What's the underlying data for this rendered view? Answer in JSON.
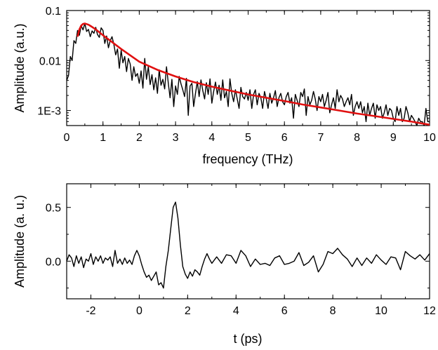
{
  "chart_data": [
    {
      "type": "line",
      "title": "",
      "xlabel": "frequency (THz)",
      "ylabel": "Amplitude (a.u.)",
      "xlim": [
        0,
        10
      ],
      "ylim": [
        0.0005,
        0.1
      ],
      "yscale": "log",
      "grid": false,
      "legend": "none",
      "x_ticks": [
        "0",
        "1",
        "2",
        "3",
        "4",
        "5",
        "6",
        "7",
        "8",
        "9",
        "10"
      ],
      "y_ticks": [
        "1E-3",
        "0.01",
        "0.1"
      ],
      "series": [
        {
          "color": "#000000",
          "x": [
            0,
            0.05,
            0.1,
            0.15,
            0.2,
            0.25,
            0.3,
            0.35,
            0.4,
            0.45,
            0.5,
            0.55,
            0.6,
            0.65,
            0.7,
            0.75,
            0.8,
            0.85,
            0.9,
            0.95,
            1.0,
            1.05,
            1.1,
            1.15,
            1.2,
            1.25,
            1.3,
            1.35,
            1.4,
            1.45,
            1.5,
            1.55,
            1.6,
            1.65,
            1.7,
            1.75,
            1.8,
            1.85,
            1.9,
            1.95,
            2.0,
            2.05,
            2.1,
            2.15,
            2.2,
            2.25,
            2.3,
            2.35,
            2.4,
            2.45,
            2.5,
            2.55,
            2.6,
            2.65,
            2.7,
            2.75,
            2.8,
            2.85,
            2.9,
            2.95,
            3.0,
            3.05,
            3.1,
            3.15,
            3.2,
            3.25,
            3.3,
            3.35,
            3.4,
            3.45,
            3.5,
            3.55,
            3.6,
            3.65,
            3.7,
            3.75,
            3.8,
            3.85,
            3.9,
            3.95,
            4.0,
            4.05,
            4.1,
            4.15,
            4.2,
            4.25,
            4.3,
            4.35,
            4.4,
            4.45,
            4.5,
            4.55,
            4.6,
            4.65,
            4.7,
            4.75,
            4.8,
            4.85,
            4.9,
            4.95,
            5.0,
            5.05,
            5.1,
            5.15,
            5.2,
            5.25,
            5.3,
            5.35,
            5.4,
            5.45,
            5.5,
            5.55,
            5.6,
            5.65,
            5.7,
            5.75,
            5.8,
            5.85,
            5.9,
            5.95,
            6.0,
            6.05,
            6.1,
            6.15,
            6.2,
            6.25,
            6.3,
            6.35,
            6.4,
            6.45,
            6.5,
            6.55,
            6.6,
            6.65,
            6.7,
            6.75,
            6.8,
            6.85,
            6.9,
            6.95,
            7.0,
            7.05,
            7.1,
            7.15,
            7.2,
            7.25,
            7.3,
            7.35,
            7.4,
            7.45,
            7.5,
            7.55,
            7.6,
            7.65,
            7.7,
            7.75,
            7.8,
            7.85,
            7.9,
            7.95,
            8.0,
            8.05,
            8.1,
            8.15,
            8.2,
            8.25,
            8.3,
            8.35,
            8.4,
            8.45,
            8.5,
            8.55,
            8.6,
            8.65,
            8.7,
            8.75,
            8.8,
            8.85,
            8.9,
            8.95,
            9.0,
            9.05,
            9.1,
            9.15,
            9.2,
            9.25,
            9.3,
            9.35,
            9.4,
            9.45,
            9.5,
            9.55,
            9.6,
            9.65,
            9.7,
            9.75,
            9.8,
            9.85,
            9.9,
            9.95,
            10.0
          ],
          "y": [
            0.004,
            0.005,
            0.012,
            0.01,
            0.025,
            0.022,
            0.04,
            0.032,
            0.05,
            0.041,
            0.055,
            0.038,
            0.042,
            0.03,
            0.039,
            0.035,
            0.046,
            0.033,
            0.029,
            0.045,
            0.04,
            0.022,
            0.031,
            0.018,
            0.025,
            0.03,
            0.021,
            0.013,
            0.017,
            0.007,
            0.016,
            0.009,
            0.012,
            0.006,
            0.011,
            0.0085,
            0.004,
            0.0075,
            0.0048,
            0.0055,
            0.0035,
            0.0062,
            0.0028,
            0.011,
            0.0042,
            0.0075,
            0.0033,
            0.0052,
            0.0026,
            0.0045,
            0.0022,
            0.0065,
            0.0032,
            0.0042,
            0.0027,
            0.0075,
            0.0035,
            0.0018,
            0.0042,
            0.0012,
            0.0031,
            0.0021,
            0.0048,
            0.0034,
            0.0026,
            0.0019,
            0.0044,
            0.0008,
            0.0031,
            0.0035,
            0.0012,
            0.0022,
            0.0038,
            0.0019,
            0.0041,
            0.0025,
            0.0017,
            0.0036,
            0.0021,
            0.0043,
            0.0014,
            0.0024,
            0.0037,
            0.0021,
            0.0032,
            0.0016,
            0.0041,
            0.0018,
            0.0024,
            0.0012,
            0.0043,
            0.0022,
            0.0015,
            0.0026,
            0.0017,
            0.0011,
            0.0029,
            0.0019,
            0.0017,
            0.0023,
            0.0016,
            0.0026,
            0.0011,
            0.0021,
            0.0026,
            0.0013,
            0.0022,
            0.0018,
            0.0011,
            0.0024,
            0.0017,
            0.0011,
            0.0022,
            0.0014,
            0.0018,
            0.0025,
            0.0012,
            0.0018,
            0.0022,
            0.0015,
            0.0013,
            0.0019,
            0.0023,
            0.0014,
            0.0018,
            0.0007,
            0.0021,
            0.0016,
            0.0012,
            0.0023,
            0.0019,
            0.0027,
            0.0008,
            0.0019,
            0.0013,
            0.0016,
            0.0024,
            0.0017,
            0.001,
            0.0019,
            0.0015,
            0.0021,
            0.0012,
            0.0016,
            0.0023,
            0.0009,
            0.0013,
            0.0018,
            0.0011,
            0.0026,
            0.0015,
            0.002,
            0.0017,
            0.0012,
            0.0015,
            0.0018,
            0.0013,
            0.0021,
            0.0008,
            0.0012,
            0.0015,
            0.0011,
            0.0015,
            0.0009,
            0.0012,
            0.0006,
            0.0014,
            0.0008,
            0.0011,
            0.0014,
            0.0007,
            0.0013,
            0.001,
            0.0012,
            0.0007,
            0.0009,
            0.0013,
            0.0008,
            0.0011,
            0.001,
            0.0007,
            0.0006,
            0.0012,
            0.0008,
            0.0011,
            0.0006,
            0.0007,
            0.0012,
            0.0009,
            0.0006,
            0.0008,
            0.0007,
            0.0006,
            0.0005,
            0.0007,
            0.0006,
            0.0006,
            0.0005,
            0.0011,
            0.0006,
            0.0006
          ]
        },
        {
          "color": "#e01010",
          "x": [
            0.3,
            0.35,
            0.4,
            0.45,
            0.5,
            0.6,
            0.7,
            0.8,
            1.0,
            1.2,
            1.5,
            2.0,
            2.5,
            3.0,
            3.5,
            4.0,
            4.5,
            5.0,
            5.5,
            6.0,
            6.5,
            7.0,
            7.5,
            8.0,
            8.5,
            9.0,
            9.5,
            10.0
          ],
          "y": [
            0.03,
            0.042,
            0.05,
            0.054,
            0.055,
            0.052,
            0.047,
            0.042,
            0.032,
            0.025,
            0.017,
            0.0095,
            0.0065,
            0.0048,
            0.0037,
            0.003,
            0.0025,
            0.0021,
            0.0018,
            0.00155,
            0.00132,
            0.00115,
            0.001,
            0.00087,
            0.00077,
            0.00068,
            0.0006,
            0.00052
          ]
        }
      ]
    },
    {
      "type": "line",
      "title": "",
      "xlabel": "t (ps)",
      "ylabel": "Amplitude (a. u.)",
      "xlim": [
        -3,
        12
      ],
      "ylim": [
        -0.35,
        0.72
      ],
      "yscale": "linear",
      "grid": false,
      "legend": "none",
      "x_ticks": [
        "-2",
        "0",
        "2",
        "4",
        "6",
        "8",
        "10",
        "12"
      ],
      "y_ticks": [
        "0.0",
        "0.5"
      ],
      "series": [
        {
          "color": "#000000",
          "x": [
            -3.0,
            -2.9,
            -2.8,
            -2.7,
            -2.6,
            -2.5,
            -2.4,
            -2.3,
            -2.2,
            -2.1,
            -2.0,
            -1.9,
            -1.8,
            -1.7,
            -1.6,
            -1.5,
            -1.4,
            -1.3,
            -1.2,
            -1.1,
            -1.0,
            -0.9,
            -0.8,
            -0.7,
            -0.6,
            -0.5,
            -0.4,
            -0.3,
            -0.2,
            -0.1,
            0.0,
            0.1,
            0.2,
            0.3,
            0.4,
            0.5,
            0.6,
            0.7,
            0.8,
            0.9,
            1.0,
            1.1,
            1.2,
            1.3,
            1.4,
            1.5,
            1.6,
            1.7,
            1.8,
            1.9,
            2.0,
            2.1,
            2.2,
            2.3,
            2.4,
            2.5,
            2.6,
            2.7,
            2.8,
            2.9,
            3.0,
            3.2,
            3.4,
            3.6,
            3.8,
            4.0,
            4.2,
            4.4,
            4.6,
            4.8,
            5.0,
            5.2,
            5.4,
            5.6,
            5.8,
            6.0,
            6.2,
            6.4,
            6.6,
            6.8,
            7.0,
            7.2,
            7.4,
            7.6,
            7.8,
            8.0,
            8.2,
            8.4,
            8.6,
            8.8,
            9.0,
            9.2,
            9.4,
            9.6,
            9.8,
            10.0,
            10.2,
            10.4,
            10.6,
            10.8,
            11.0,
            11.2,
            11.4,
            11.6,
            11.8,
            12.0
          ],
          "y": [
            0.0,
            0.06,
            0.03,
            -0.05,
            0.05,
            -0.02,
            0.04,
            -0.06,
            0.02,
            0.0,
            0.07,
            -0.03,
            0.04,
            0.0,
            0.05,
            -0.02,
            0.03,
            0.01,
            0.04,
            -0.05,
            0.1,
            -0.02,
            0.02,
            -0.03,
            0.03,
            -0.02,
            0.01,
            -0.03,
            0.05,
            0.1,
            0.05,
            -0.03,
            -0.1,
            -0.15,
            -0.13,
            -0.18,
            -0.14,
            -0.1,
            -0.22,
            -0.2,
            -0.25,
            -0.05,
            0.1,
            0.3,
            0.5,
            0.55,
            0.4,
            0.15,
            -0.05,
            -0.12,
            -0.16,
            -0.1,
            -0.14,
            -0.08,
            -0.1,
            -0.13,
            -0.05,
            0.02,
            0.07,
            0.02,
            -0.02,
            0.04,
            -0.02,
            0.06,
            0.05,
            -0.02,
            0.1,
            0.05,
            -0.05,
            0.02,
            -0.03,
            -0.02,
            -0.04,
            0.03,
            0.05,
            -0.03,
            -0.02,
            0.0,
            0.08,
            -0.04,
            -0.01,
            0.05,
            -0.1,
            -0.03,
            0.09,
            0.07,
            0.12,
            0.06,
            0.02,
            -0.05,
            0.03,
            -0.04,
            0.03,
            -0.02,
            0.06,
            0.01,
            -0.03,
            0.04,
            0.03,
            -0.08,
            0.09,
            0.05,
            0.02,
            0.06,
            0.01,
            0.07
          ]
        }
      ]
    }
  ]
}
